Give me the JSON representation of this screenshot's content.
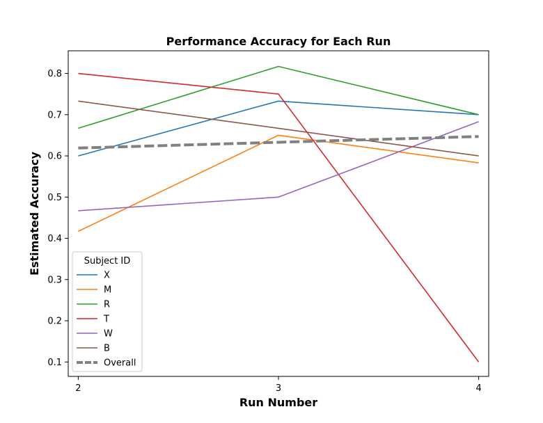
{
  "chart_data": {
    "type": "line",
    "title": "Performance Accuracy for Each Run",
    "xlabel": "Run Number",
    "ylabel": "Estimated Accuracy",
    "x": [
      2,
      3,
      4
    ],
    "x_ticks": [
      "2",
      "3",
      "4"
    ],
    "y_ticks": [
      "0.1",
      "0.2",
      "0.3",
      "0.4",
      "0.5",
      "0.6",
      "0.7",
      "0.8"
    ],
    "xlim": [
      1.95,
      4.05
    ],
    "ylim": [
      0.065,
      0.855
    ],
    "grid": false,
    "legend": {
      "title": "Subject ID",
      "placement": "lower-left"
    },
    "series": [
      {
        "name": "X",
        "color": "#1f77b4",
        "values": [
          0.6,
          0.733,
          0.7
        ],
        "style": "solid"
      },
      {
        "name": "M",
        "color": "#ff7f0e",
        "values": [
          0.417,
          0.65,
          0.583
        ],
        "style": "solid"
      },
      {
        "name": "R",
        "color": "#2ca02c",
        "values": [
          0.667,
          0.817,
          0.7
        ],
        "style": "solid"
      },
      {
        "name": "T",
        "color": "#d62728",
        "values": [
          0.8,
          0.75,
          0.1
        ],
        "style": "solid"
      },
      {
        "name": "W",
        "color": "#9467bd",
        "values": [
          0.467,
          0.5,
          0.683
        ],
        "style": "solid"
      },
      {
        "name": "B",
        "color": "#8c564b",
        "values": [
          0.733,
          0.667,
          0.6
        ],
        "style": "solid"
      },
      {
        "name": "Overall",
        "color": "#808080",
        "values": [
          0.619,
          0.633,
          0.647
        ],
        "style": "dashed"
      }
    ]
  }
}
